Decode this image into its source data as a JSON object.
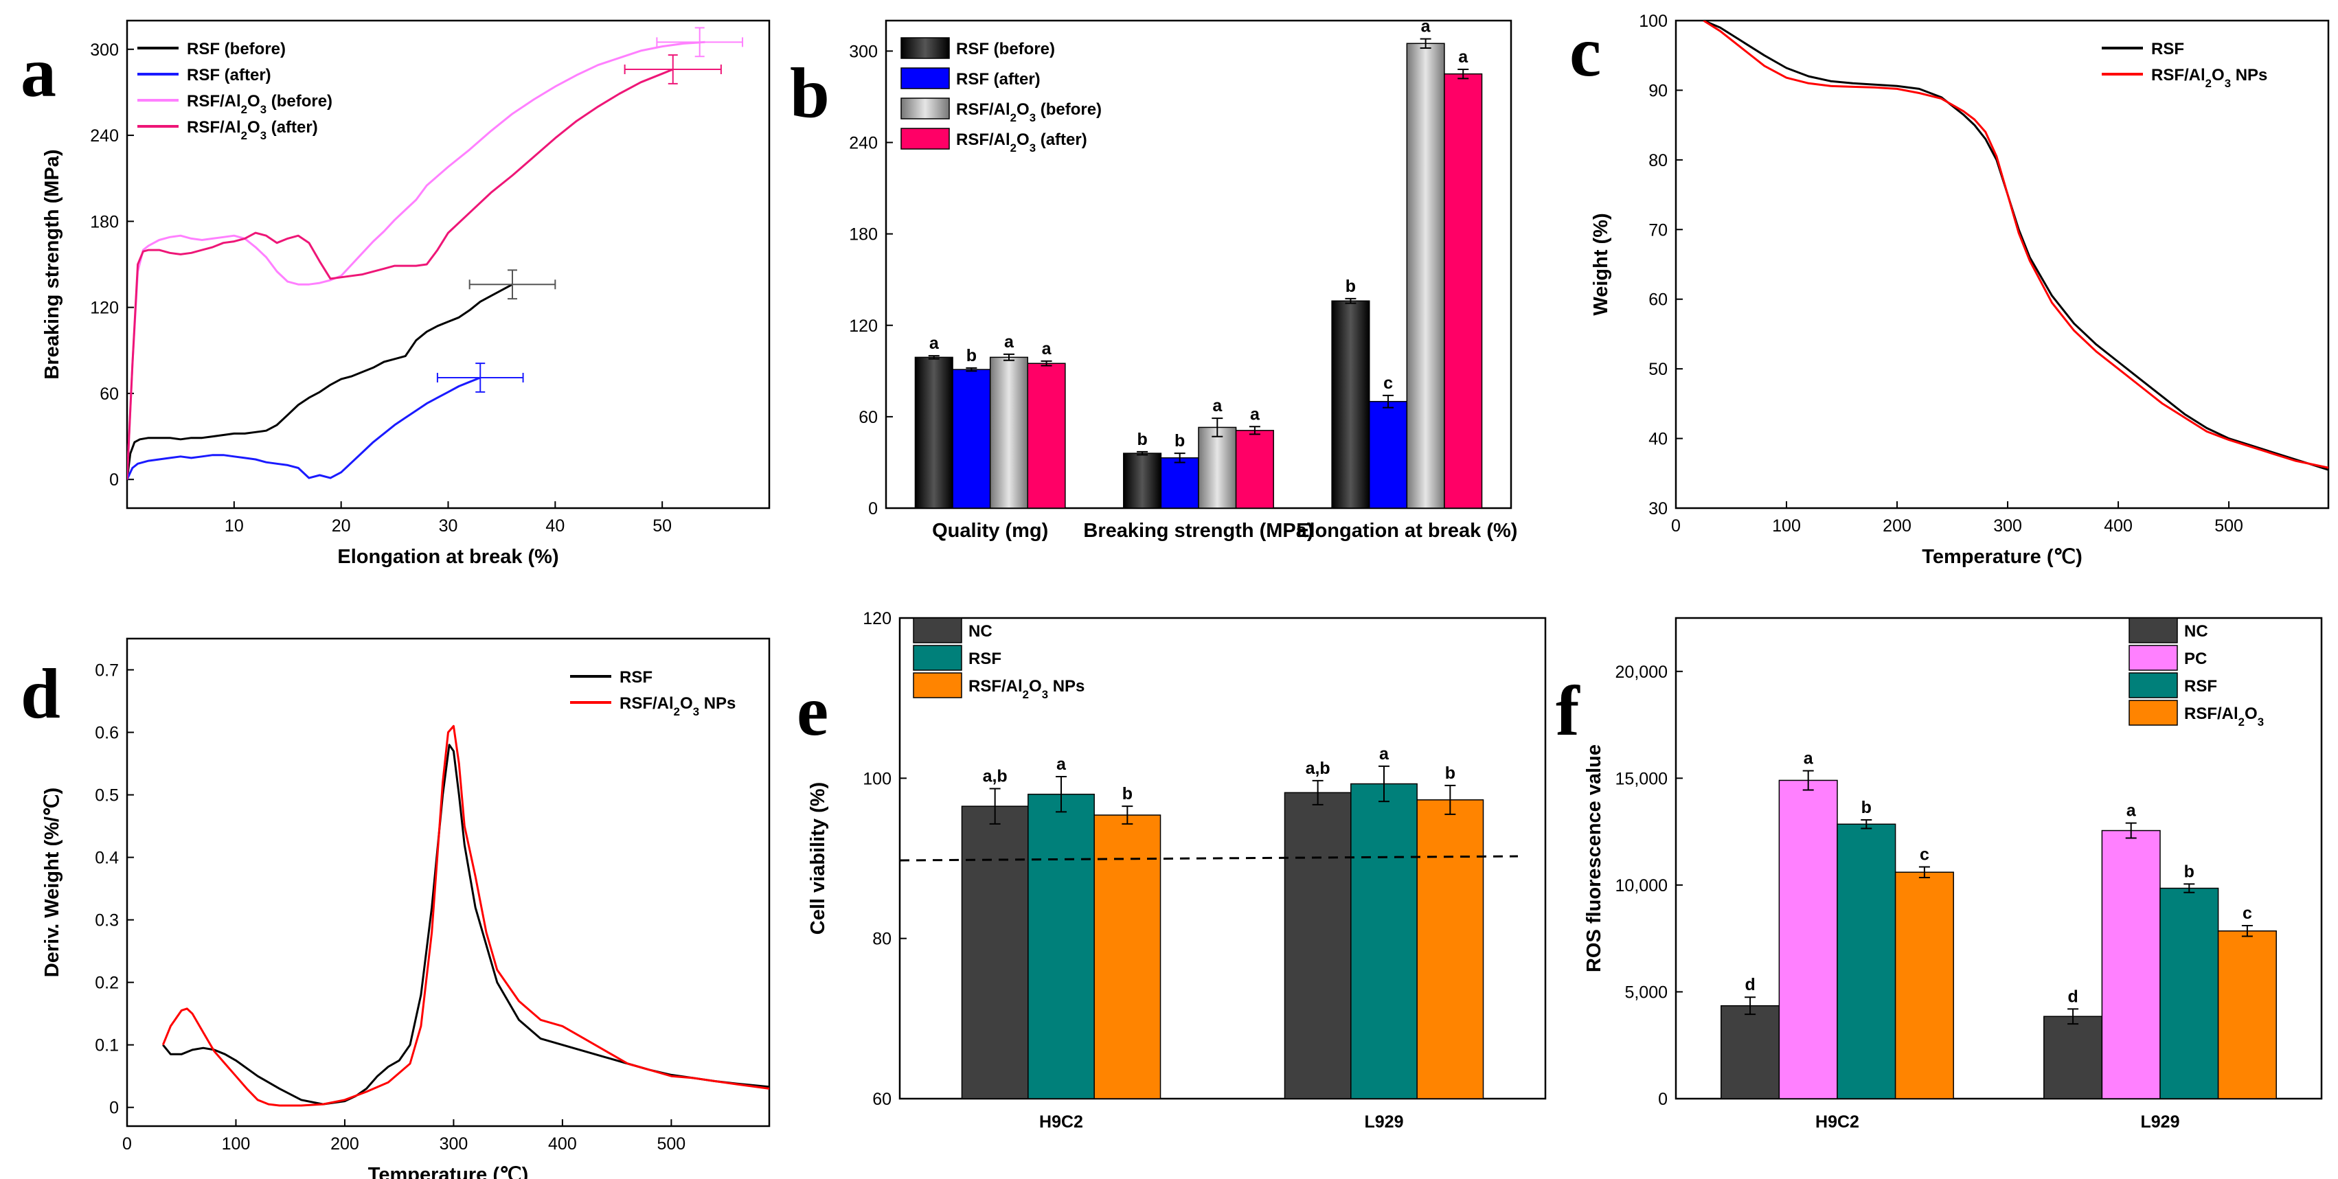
{
  "figure": {
    "panels": [
      "a",
      "b",
      "c",
      "d",
      "e",
      "f"
    ]
  },
  "chart_data": [
    {
      "id": "a",
      "letter": "a",
      "type": "line",
      "xlabel": "Elongation at break (%)",
      "ylabel": "Breaking strength (MPa)",
      "xlim": [
        0,
        60
      ],
      "ylim": [
        -20,
        320
      ],
      "xticks": [
        10,
        20,
        30,
        40,
        50
      ],
      "yticks": [
        0,
        60,
        120,
        180,
        240,
        300
      ],
      "legend_pos": "top-left",
      "series": [
        {
          "name": "RSF (before)",
          "color": "#000000",
          "x": [
            0,
            0.3,
            0.7,
            1.2,
            2,
            3,
            4,
            5,
            6,
            7,
            8,
            9,
            10,
            11,
            12,
            13,
            14,
            15,
            16,
            17,
            18,
            19,
            20,
            21,
            22,
            23,
            24,
            25,
            26,
            27,
            28,
            29,
            30,
            31,
            32,
            33,
            34,
            35,
            36
          ],
          "y": [
            0,
            18,
            26,
            28,
            29,
            29,
            29,
            28,
            29,
            29,
            30,
            31,
            32,
            32,
            33,
            34,
            38,
            45,
            52,
            57,
            61,
            66,
            70,
            72,
            75,
            78,
            82,
            84,
            86,
            97,
            103,
            107,
            110,
            113,
            118,
            124,
            128,
            132,
            136
          ],
          "err_x": [
            36,
            4
          ],
          "err_y": [
            136,
            10
          ]
        },
        {
          "name": "RSF (after)",
          "color": "#1a1aff",
          "x": [
            0,
            0.5,
            1,
            2,
            3,
            4,
            5,
            6,
            7,
            8,
            9,
            10,
            11,
            12,
            13,
            14,
            15,
            16,
            17,
            18,
            19,
            20,
            21,
            22,
            23,
            24,
            25,
            26,
            27,
            28,
            29,
            30,
            31,
            32,
            33
          ],
          "y": [
            0,
            8,
            11,
            13,
            14,
            15,
            16,
            15,
            16,
            17,
            17,
            16,
            15,
            14,
            12,
            11,
            10,
            8,
            1,
            3,
            1,
            5,
            12,
            19,
            26,
            32,
            38,
            43,
            48,
            53,
            57,
            61,
            65,
            68,
            71
          ],
          "err_x": [
            33,
            4
          ],
          "err_y": [
            71,
            10
          ]
        },
        {
          "name": "RSF/Al2O3 (before)",
          "color": "#ff80ff",
          "x": [
            0,
            0.5,
            1,
            1.5,
            2,
            3,
            4,
            5,
            6,
            7,
            8,
            9,
            10,
            11,
            12,
            13,
            14,
            15,
            16,
            17,
            18,
            19,
            20,
            21,
            22,
            23,
            24,
            25,
            26,
            27,
            28,
            30,
            32,
            34,
            36,
            38,
            40,
            42,
            44,
            46,
            48,
            50,
            52,
            54
          ],
          "y": [
            0,
            80,
            145,
            160,
            163,
            167,
            169,
            170,
            168,
            167,
            168,
            169,
            170,
            168,
            162,
            155,
            145,
            138,
            136,
            136,
            137,
            139,
            142,
            150,
            158,
            166,
            173,
            181,
            188,
            195,
            205,
            218,
            230,
            243,
            255,
            265,
            274,
            282,
            289,
            294,
            299,
            302,
            304,
            305
          ],
          "err_x": [
            53.5,
            4
          ],
          "err_y": [
            305,
            10
          ]
        },
        {
          "name": "RSF/Al2O3 (after)",
          "color": "#ee1677",
          "x": [
            0,
            0.5,
            1,
            1.5,
            2,
            3,
            4,
            5,
            6,
            7,
            8,
            9,
            10,
            11,
            12,
            13,
            14,
            15,
            16,
            17,
            18,
            19,
            20,
            21,
            22,
            23,
            24,
            25,
            26,
            27,
            28,
            29,
            30,
            32,
            34,
            36,
            38,
            40,
            42,
            44,
            46,
            48,
            50,
            51
          ],
          "y": [
            0,
            80,
            150,
            159,
            160,
            160,
            158,
            157,
            158,
            160,
            162,
            165,
            166,
            168,
            172,
            170,
            165,
            168,
            170,
            165,
            152,
            140,
            141,
            142,
            143,
            145,
            147,
            149,
            149,
            149,
            150,
            160,
            172,
            186,
            200,
            212,
            225,
            238,
            250,
            260,
            269,
            277,
            283,
            286
          ],
          "err_x": [
            51,
            4.5
          ],
          "err_y": [
            286,
            10
          ]
        }
      ]
    },
    {
      "id": "b",
      "letter": "b",
      "type": "bar",
      "categories": [
        "Quality (mg)",
        "Breaking strength (MPa)",
        "Elongation at break (%)"
      ],
      "ylim": [
        0,
        320
      ],
      "yticks": [
        0,
        60,
        120,
        180,
        240,
        300
      ],
      "legend_pos": "top-left",
      "series": [
        {
          "name": "RSF (before)",
          "color": "#000000",
          "values": [
            99,
            36,
            136
          ],
          "errors": [
            1,
            1,
            1.5
          ],
          "letters": [
            "a",
            "b",
            "b"
          ]
        },
        {
          "name": "RSF (after)",
          "color": "#0000ff",
          "values": [
            91,
            33,
            70
          ],
          "errors": [
            1,
            3,
            4
          ],
          "letters": [
            "b",
            "b",
            "c"
          ]
        },
        {
          "name": "RSF/Al2O3 (before)",
          "color": "#aaaaaa",
          "values": [
            99,
            53,
            305
          ],
          "errors": [
            2,
            6,
            3
          ],
          "letters": [
            "a",
            "a",
            "a"
          ]
        },
        {
          "name": "RSF/Al2O3 (after)",
          "color": "#ff0066",
          "values": [
            95,
            51,
            285
          ],
          "errors": [
            1.5,
            2.5,
            3
          ],
          "letters": [
            "a",
            "a",
            "a"
          ]
        }
      ]
    },
    {
      "id": "c",
      "letter": "c",
      "type": "line",
      "xlabel": "Temperature (℃)",
      "ylabel": "Weight (%)",
      "xlim": [
        0,
        590
      ],
      "ylim": [
        30,
        100
      ],
      "xticks": [
        0,
        100,
        200,
        300,
        400,
        500
      ],
      "yticks": [
        30,
        40,
        50,
        60,
        70,
        80,
        90,
        100
      ],
      "legend_pos": "top-right",
      "series": [
        {
          "name": "RSF",
          "color": "#000000",
          "x": [
            25,
            40,
            60,
            80,
            100,
            120,
            140,
            160,
            180,
            200,
            220,
            240,
            260,
            270,
            280,
            290,
            300,
            310,
            320,
            340,
            360,
            380,
            400,
            420,
            440,
            460,
            480,
            500,
            520,
            540,
            560,
            590
          ],
          "y": [
            100,
            99,
            97,
            95,
            93.2,
            92,
            91.3,
            91,
            90.8,
            90.6,
            90.2,
            89,
            86.5,
            85,
            83,
            80,
            75,
            70,
            66,
            60.5,
            56.5,
            53.5,
            51,
            48.5,
            46,
            43.5,
            41.5,
            40,
            39,
            38,
            37,
            35.5
          ]
        },
        {
          "name": "RSF/Al2O3 NPs",
          "color": "#ff0000",
          "x": [
            25,
            40,
            60,
            80,
            100,
            120,
            140,
            160,
            180,
            200,
            220,
            240,
            260,
            270,
            280,
            290,
            300,
            310,
            320,
            340,
            360,
            380,
            400,
            420,
            440,
            460,
            480,
            500,
            520,
            540,
            560,
            590
          ],
          "y": [
            100,
            98.5,
            96,
            93.5,
            91.8,
            91,
            90.6,
            90.5,
            90.4,
            90.2,
            89.6,
            88.8,
            87,
            85.8,
            84,
            80.5,
            75,
            69.5,
            65.5,
            59.5,
            55.5,
            52.5,
            50,
            47.5,
            45,
            43,
            41,
            39.8,
            38.8,
            37.8,
            36.8,
            35.8
          ]
        }
      ]
    },
    {
      "id": "d",
      "letter": "d",
      "type": "line",
      "xlabel": "Temperature (℃)",
      "ylabel": "Deriv. Weight (%/℃)",
      "xlim": [
        0,
        590
      ],
      "ylim": [
        -0.03,
        0.75
      ],
      "xticks": [
        0,
        100,
        200,
        300,
        400,
        500
      ],
      "yticks": [
        0.0,
        0.1,
        0.2,
        0.3,
        0.4,
        0.5,
        0.6,
        0.7
      ],
      "legend_pos": "top-right",
      "series": [
        {
          "name": "RSF",
          "color": "#000000",
          "x": [
            33,
            40,
            50,
            60,
            70,
            80,
            90,
            100,
            120,
            140,
            160,
            180,
            200,
            210,
            220,
            230,
            240,
            250,
            260,
            270,
            280,
            290,
            296,
            300,
            305,
            310,
            320,
            340,
            360,
            380,
            400,
            420,
            440,
            460,
            480,
            500,
            520,
            540,
            560,
            590
          ],
          "y": [
            0.1,
            0.085,
            0.085,
            0.092,
            0.095,
            0.092,
            0.085,
            0.075,
            0.05,
            0.03,
            0.012,
            0.005,
            0.01,
            0.018,
            0.03,
            0.05,
            0.065,
            0.075,
            0.1,
            0.18,
            0.32,
            0.5,
            0.58,
            0.57,
            0.5,
            0.42,
            0.32,
            0.2,
            0.14,
            0.11,
            0.1,
            0.09,
            0.08,
            0.07,
            0.06,
            0.052,
            0.047,
            0.042,
            0.038,
            0.033
          ]
        },
        {
          "name": "RSF/Al2O3 NPs",
          "color": "#ff0000",
          "x": [
            33,
            40,
            50,
            55,
            60,
            70,
            80,
            90,
            100,
            110,
            120,
            130,
            140,
            160,
            180,
            200,
            220,
            240,
            260,
            270,
            280,
            290,
            295,
            300,
            305,
            310,
            315,
            320,
            330,
            340,
            360,
            380,
            400,
            420,
            440,
            460,
            480,
            500,
            520,
            540,
            560,
            590
          ],
          "y": [
            0.1,
            0.13,
            0.155,
            0.158,
            0.15,
            0.12,
            0.09,
            0.07,
            0.05,
            0.03,
            0.012,
            0.005,
            0.003,
            0.003,
            0.005,
            0.012,
            0.025,
            0.04,
            0.07,
            0.13,
            0.28,
            0.52,
            0.6,
            0.61,
            0.55,
            0.45,
            0.41,
            0.37,
            0.28,
            0.22,
            0.17,
            0.14,
            0.13,
            0.11,
            0.09,
            0.07,
            0.06,
            0.05,
            0.047,
            0.042,
            0.037,
            0.03
          ]
        }
      ]
    },
    {
      "id": "e",
      "letter": "e",
      "type": "bar",
      "categories": [
        "H9C2",
        "L929"
      ],
      "ylabel": "Cell viability (%)",
      "ylim": [
        60,
        120
      ],
      "yticks": [
        60,
        80,
        100,
        120
      ],
      "reference_line": 90,
      "legend_pos": "top-left",
      "series": [
        {
          "name": "NC",
          "color": "#404040",
          "values": [
            96.5,
            98.2
          ],
          "errors": [
            2.2,
            1.5
          ],
          "letters": [
            "a,b",
            "a,b"
          ]
        },
        {
          "name": "RSF",
          "color": "#00807a",
          "values": [
            98,
            99.3
          ],
          "errors": [
            2.2,
            2.2
          ],
          "letters": [
            "a",
            "a"
          ]
        },
        {
          "name": "RSF/Al2O3 NPs",
          "color": "#ff8400",
          "values": [
            95.4,
            97.3
          ],
          "errors": [
            1.1,
            1.8
          ],
          "letters": [
            "b",
            "b"
          ]
        }
      ]
    },
    {
      "id": "f",
      "letter": "f",
      "type": "bar",
      "categories": [
        "H9C2",
        "L929"
      ],
      "ylabel": "ROS fluorescence value",
      "ylim": [
        0,
        22500
      ],
      "yticks": [
        0,
        5000,
        10000,
        15000,
        20000
      ],
      "ytick_labels": [
        "0",
        "5,000",
        "10,000",
        "15,000",
        "20,000"
      ],
      "legend_pos": "top-right",
      "series": [
        {
          "name": "NC",
          "color": "#404040",
          "values": [
            4350,
            3850
          ],
          "errors": [
            400,
            350
          ],
          "letters": [
            "d",
            "d"
          ]
        },
        {
          "name": "PC",
          "color": "#ff80ff",
          "values": [
            14900,
            12550
          ],
          "errors": [
            450,
            350
          ],
          "letters": [
            "a",
            "a"
          ]
        },
        {
          "name": "RSF",
          "color": "#00807a",
          "values": [
            12850,
            9850
          ],
          "errors": [
            200,
            200
          ],
          "letters": [
            "b",
            "b"
          ]
        },
        {
          "name": "RSF/Al2O3",
          "color": "#ff8400",
          "values": [
            10600,
            7850
          ],
          "errors": [
            250,
            250
          ],
          "letters": [
            "c",
            "c"
          ]
        }
      ]
    }
  ]
}
